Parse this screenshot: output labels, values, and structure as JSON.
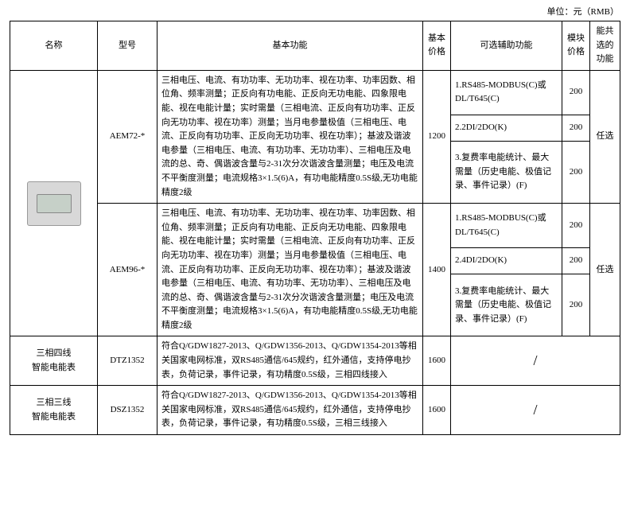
{
  "unit_label": "单位：元（RMB）",
  "header": {
    "name": "名称",
    "model": "型号",
    "basic_func": "基本功能",
    "basic_price": "基本价格",
    "opt_func": "可选辅助功能",
    "mod_price": "模块价格",
    "shareable": "能共选的功能"
  },
  "aem72": {
    "model": "AEM72-*",
    "basic_func": "三相电压、电流、有功功率、无功功率、视在功率、功率因数、相位角、频率测量；正反向有功电能、正反向无功电能、四象限电能、视在电能计量；实时需量（三相电流、正反向有功功率、正反向无功功率、视在功率）测量；当月电参量极值（三相电压、电流、正反向有功功率、正反向无功功率、视在功率）；基波及谐波电参量（三相电压、电流、有功功率、无功功率）、三相电压及电流的总、奇、偶谐波含量与2-31次分次谐波含量测量；电压及电流不平衡度测量；电流规格3×1.5(6)A，有功电能精度0.5S级,无功电能精度2级",
    "basic_price": "1200",
    "opt": [
      {
        "text": "1.RS485-MODBUS(C)或DL/T645(C)",
        "price": "200"
      },
      {
        "text": "2.2DI/2DO(K)",
        "price": "200"
      },
      {
        "text": "3.复费率电能统计、最大需量（历史电能、极值记录、事件记录）(F)",
        "price": "200"
      }
    ],
    "share": "任选"
  },
  "aem96": {
    "model": "AEM96-*",
    "basic_func": "三相电压、电流、有功功率、无功功率、视在功率、功率因数、相位角、频率测量；正反向有功电能、正反向无功电能、四象限电能、视在电能计量；实时需量（三相电流、正反向有功功率、正反向无功功率、视在功率）测量；当月电参量极值（三相电压、电流、正反向有功功率、正反向无功功率、视在功率）；基波及谐波电参量（三相电压、电流、有功功率、无功功率）、三相电压及电流的总、奇、偶谐波含量与2-31次分次谐波含量测量；电压及电流不平衡度测量；电流规格3×1.5(6)A，有功电能精度0.5S级,无功电能精度2级",
    "basic_price": "1400",
    "opt": [
      {
        "text": "1.RS485-MODBUS(C)或DL/T645(C)",
        "price": "200"
      },
      {
        "text": "2.4DI/2DO(K)",
        "price": "200"
      },
      {
        "text": "3.复费率电能统计、最大需量（历史电能、极值记录、事件记录）(F)",
        "price": "200"
      }
    ],
    "share": "任选"
  },
  "dtz": {
    "name_l1": "三相四线",
    "name_l2": "智能电能表",
    "model": "DTZ1352",
    "basic_func": "符合Q/GDW1827-2013、Q/GDW1356-2013、Q/GDW1354-2013等相关国家电网标准，双RS485通信/645规约，红外通信，支持停电抄表，负荷记录，事件记录，有功精度0.5S级，三相四线接入",
    "basic_price": "1600",
    "slash": "/"
  },
  "dsz": {
    "name_l1": "三相三线",
    "name_l2": "智能电能表",
    "model": "DSZ1352",
    "basic_func": "符合Q/GDW1827-2013、Q/GDW1356-2013、Q/GDW1354-2013等相关国家电网标准，双RS485通信/645规约，红外通信，支持停电抄表，负荷记录，事件记录，有功精度0.5S级，三相三线接入",
    "basic_price": "1600",
    "slash": "/"
  }
}
